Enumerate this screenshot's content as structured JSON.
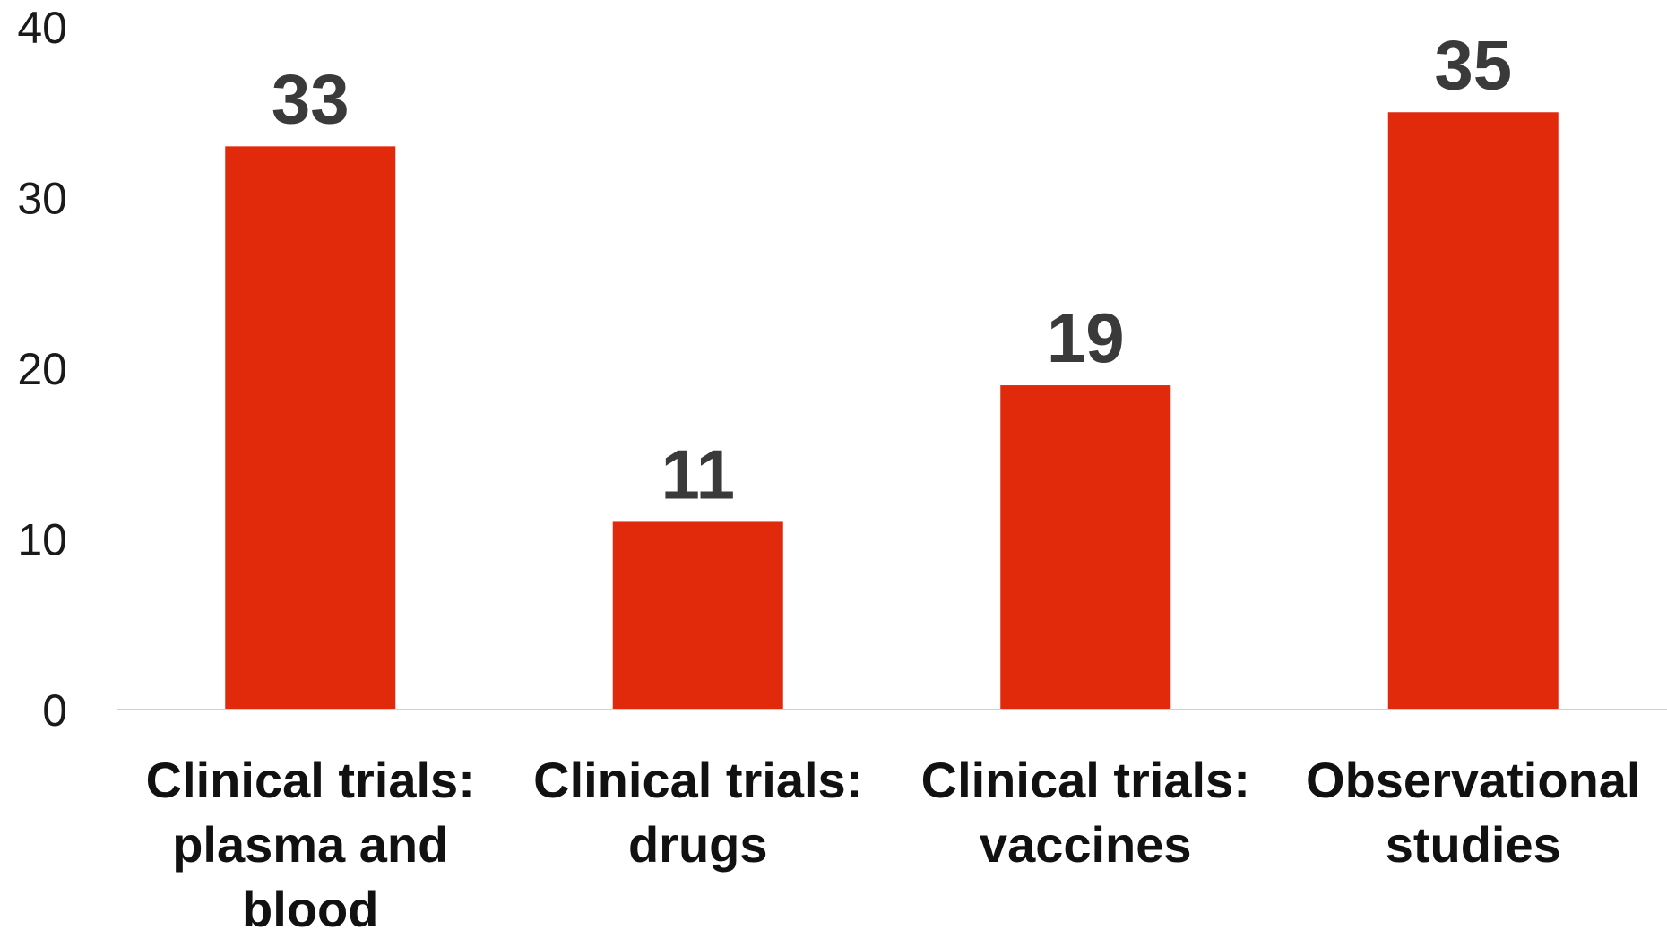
{
  "chart_data": {
    "type": "bar",
    "categories": [
      [
        "Clinical trials:",
        "plasma and",
        "blood"
      ],
      [
        "Clinical trials:",
        "drugs"
      ],
      [
        "Clinical trials:",
        "vaccines"
      ],
      [
        "Observational",
        "studies"
      ]
    ],
    "values": [
      33,
      11,
      19,
      35
    ],
    "data_labels": [
      "33",
      "11",
      "19",
      "35"
    ],
    "title": "",
    "xlabel": "",
    "ylabel": "",
    "ylim": [
      0,
      40
    ],
    "yticks": [
      0,
      10,
      20,
      30,
      40
    ],
    "grid": false,
    "legend": "none",
    "bar_color": "#e1290b",
    "label_color": "#3a3a3a",
    "axis_color": "#d0d0d0"
  }
}
